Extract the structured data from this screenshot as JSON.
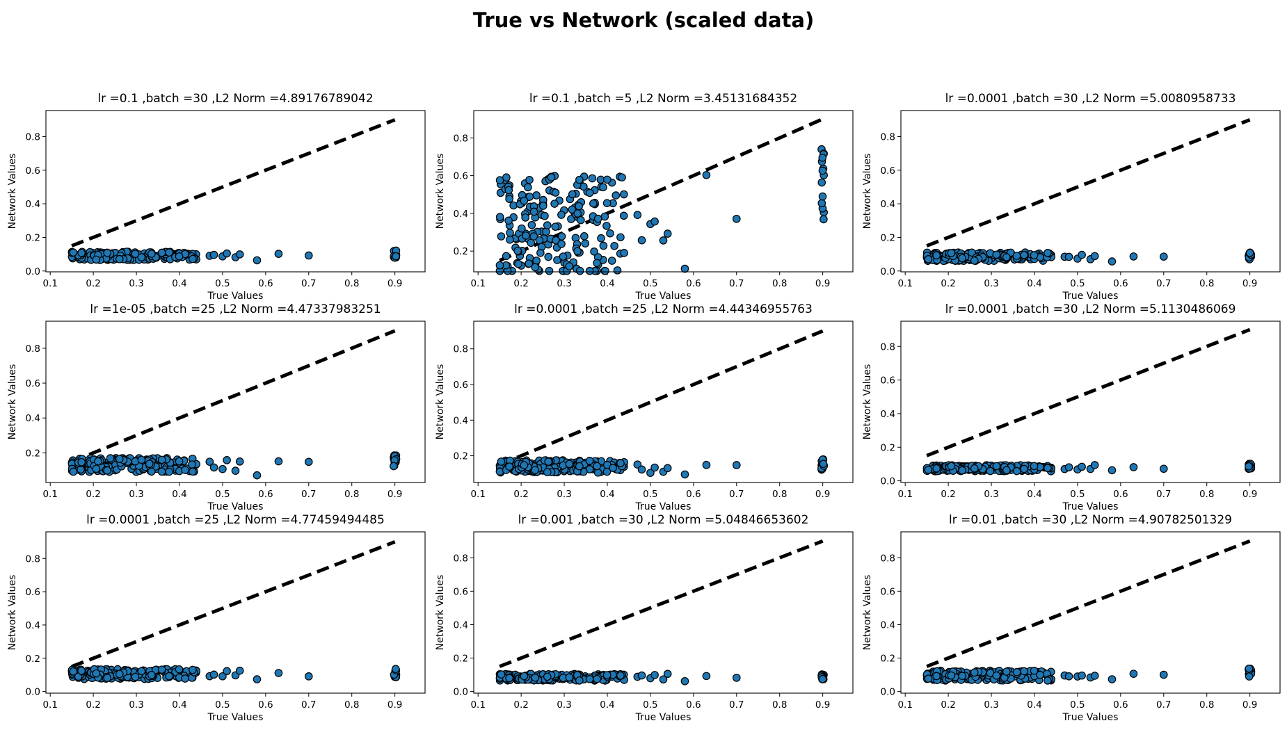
{
  "figure_title": "True vs Network (scaled data)",
  "chart_data": [
    {
      "type": "scatter",
      "title": "lr =0.1 ,batch =30 ,L2 Norm =4.89176789042",
      "xlabel": "True Values",
      "ylabel": "Network Values",
      "xlim": [
        0.09,
        0.97
      ],
      "ylim": [
        -0.005,
        0.955
      ],
      "xticks": [
        "0.1",
        "0.2",
        "0.3",
        "0.4",
        "0.5",
        "0.6",
        "0.7",
        "0.8",
        "0.9"
      ],
      "yticks": [
        "0.0",
        "0.2",
        "0.4",
        "0.6",
        "0.8"
      ],
      "reference_line": {
        "x": [
          0.15,
          0.9
        ],
        "y": [
          0.15,
          0.9
        ]
      },
      "series": [
        {
          "base": 0.09,
          "spread": 0.025,
          "tail": [
            0.095,
            0.1,
            0.09,
            0.11,
            0.08,
            0.1,
            0.07,
            0.1
          ]
        }
      ]
    },
    {
      "type": "scatter",
      "title": "lr =0.1 ,batch =5 ,L2 Norm =3.45131684352",
      "xlabel": "True Values",
      "ylabel": "Network Values",
      "xlim": [
        0.09,
        0.97
      ],
      "ylim": [
        0.09,
        0.945
      ],
      "xticks": [
        "0.1",
        "0.2",
        "0.3",
        "0.4",
        "0.5",
        "0.6",
        "0.7",
        "0.8",
        "0.9"
      ],
      "yticks": [
        "0.2",
        "0.4",
        "0.6",
        "0.8"
      ],
      "reference_line": {
        "x": [
          0.15,
          0.9
        ],
        "y": [
          0.15,
          0.9
        ]
      },
      "series": [
        {
          "base": 0.33,
          "spread": 0.27,
          "tail": [
            0.36,
            0.3,
            0.27,
            0.32,
            0.22,
            0.31,
            0.17,
            0.55
          ]
        }
      ]
    },
    {
      "type": "scatter",
      "title": "lr =0.0001 ,batch =30 ,L2 Norm =5.0080958733",
      "xlabel": "True Values",
      "ylabel": "Network Values",
      "xlim": [
        0.09,
        0.97
      ],
      "ylim": [
        -0.005,
        0.955
      ],
      "xticks": [
        "0.1",
        "0.2",
        "0.3",
        "0.4",
        "0.5",
        "0.6",
        "0.7",
        "0.8",
        "0.9"
      ],
      "yticks": [
        "0.0",
        "0.2",
        "0.4",
        "0.6",
        "0.8"
      ],
      "reference_line": {
        "x": [
          0.15,
          0.9
        ],
        "y": [
          0.15,
          0.9
        ]
      },
      "series": [
        {
          "base": 0.085,
          "spread": 0.025,
          "tail": [
            0.085,
            0.09,
            0.08,
            0.095,
            0.07,
            0.085,
            0.06,
            0.09
          ]
        }
      ]
    },
    {
      "type": "scatter",
      "title": "lr =1e-05 ,batch =25 ,L2 Norm =4.47337983251",
      "xlabel": "True Values",
      "ylabel": "Network Values",
      "xlim": [
        0.09,
        0.97
      ],
      "ylim": [
        0.03,
        0.955
      ],
      "xticks": [
        "0.1",
        "0.2",
        "0.3",
        "0.4",
        "0.5",
        "0.6",
        "0.7",
        "0.8",
        "0.9"
      ],
      "yticks": [
        "0.2",
        "0.4",
        "0.6",
        "0.8"
      ],
      "reference_line": {
        "x": [
          0.15,
          0.9
        ],
        "y": [
          0.15,
          0.9
        ]
      },
      "series": [
        {
          "base": 0.13,
          "spread": 0.04,
          "tail": [
            0.14,
            0.12,
            0.11,
            0.15,
            0.09,
            0.15,
            0.08,
            0.15
          ]
        }
      ]
    },
    {
      "type": "scatter",
      "title": "lr =0.0001 ,batch =25 ,L2 Norm =4.44346955763",
      "xlabel": "True Values",
      "ylabel": "Network Values",
      "xlim": [
        0.09,
        0.97
      ],
      "ylim": [
        0.05,
        0.955
      ],
      "xticks": [
        "0.1",
        "0.2",
        "0.3",
        "0.4",
        "0.5",
        "0.6",
        "0.7",
        "0.8",
        "0.9"
      ],
      "yticks": [
        "0.2",
        "0.4",
        "0.6",
        "0.8"
      ],
      "reference_line": {
        "x": [
          0.15,
          0.9
        ],
        "y": [
          0.15,
          0.9
        ]
      },
      "series": [
        {
          "base": 0.14,
          "spread": 0.035,
          "tail": [
            0.15,
            0.12,
            0.11,
            0.14,
            0.12,
            0.13,
            0.1,
            0.15
          ]
        }
      ]
    },
    {
      "type": "scatter",
      "title": "lr =0.0001 ,batch =30 ,L2 Norm =5.1130486069",
      "xlabel": "True Values",
      "ylabel": "Network Values",
      "xlim": [
        0.09,
        0.97
      ],
      "ylim": [
        -0.01,
        0.95
      ],
      "xticks": [
        "0.1",
        "0.2",
        "0.3",
        "0.4",
        "0.5",
        "0.6",
        "0.7",
        "0.8",
        "0.9"
      ],
      "yticks": [
        "0.0",
        "0.2",
        "0.4",
        "0.6",
        "0.8"
      ],
      "reference_line": {
        "x": [
          0.15,
          0.9
        ],
        "y": [
          0.15,
          0.9
        ]
      },
      "series": [
        {
          "base": 0.075,
          "spread": 0.018,
          "tail": [
            0.075,
            0.08,
            0.07,
            0.085,
            0.07,
            0.09,
            0.06,
            0.085
          ]
        }
      ]
    },
    {
      "type": "scatter",
      "title": "lr =0.0001 ,batch =25 ,L2 Norm =4.77459494485",
      "xlabel": "True Values",
      "ylabel": "Network Values",
      "xlim": [
        0.09,
        0.97
      ],
      "ylim": [
        -0.01,
        0.96
      ],
      "xticks": [
        "0.1",
        "0.2",
        "0.3",
        "0.4",
        "0.5",
        "0.6",
        "0.7",
        "0.8",
        "0.9"
      ],
      "yticks": [
        "0.0",
        "0.2",
        "0.4",
        "0.6",
        "0.8"
      ],
      "reference_line": {
        "x": [
          0.15,
          0.9
        ],
        "y": [
          0.15,
          0.9
        ]
      },
      "series": [
        {
          "base": 0.105,
          "spread": 0.03,
          "tail": [
            0.1,
            0.11,
            0.09,
            0.13,
            0.1,
            0.12,
            0.07,
            0.11
          ]
        }
      ]
    },
    {
      "type": "scatter",
      "title": "lr =0.001 ,batch =30 ,L2 Norm =5.04846653602",
      "xlabel": "True Values",
      "ylabel": "Network Values",
      "xlim": [
        0.09,
        0.97
      ],
      "ylim": [
        -0.01,
        0.955
      ],
      "xticks": [
        "0.1",
        "0.2",
        "0.3",
        "0.4",
        "0.5",
        "0.6",
        "0.7",
        "0.8",
        "0.9"
      ],
      "yticks": [
        "0.0",
        "0.2",
        "0.4",
        "0.6",
        "0.8"
      ],
      "reference_line": {
        "x": [
          0.15,
          0.9
        ],
        "y": [
          0.15,
          0.9
        ]
      },
      "series": [
        {
          "base": 0.085,
          "spread": 0.02,
          "tail": [
            0.085,
            0.09,
            0.08,
            0.095,
            0.07,
            0.1,
            0.065,
            0.09
          ]
        }
      ]
    },
    {
      "type": "scatter",
      "title": "lr =0.01 ,batch =30 ,L2 Norm =4.90782501329",
      "xlabel": "True Values",
      "ylabel": "Network Values",
      "xlim": [
        0.09,
        0.97
      ],
      "ylim": [
        -0.01,
        0.955
      ],
      "xticks": [
        "0.1",
        "0.2",
        "0.3",
        "0.4",
        "0.5",
        "0.6",
        "0.7",
        "0.8",
        "0.9"
      ],
      "yticks": [
        "0.0",
        "0.2",
        "0.4",
        "0.6",
        "0.8"
      ],
      "reference_line": {
        "x": [
          0.15,
          0.9
        ],
        "y": [
          0.15,
          0.9
        ]
      },
      "series": [
        {
          "base": 0.095,
          "spread": 0.03,
          "tail": [
            0.1,
            0.095,
            0.09,
            0.1,
            0.08,
            0.095,
            0.065,
            0.11
          ]
        }
      ]
    }
  ]
}
